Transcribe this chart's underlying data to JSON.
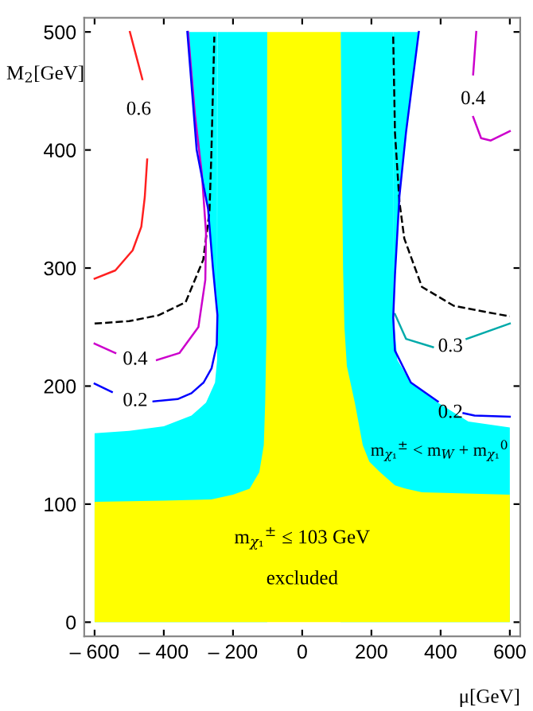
{
  "chart_data": {
    "type": "line",
    "xlabel": "μ[GeV]",
    "ylabel": "M$_{2}$[GeV]",
    "xlim": [
      -630,
      630
    ],
    "ylim": [
      -12,
      512
    ],
    "xticks": [
      {
        "value": -600,
        "label": "– 600"
      },
      {
        "value": -400,
        "label": "– 400"
      },
      {
        "value": -200,
        "label": "– 200"
      },
      0,
      200,
      400,
      600
    ],
    "yticks": [
      0,
      100,
      200,
      300,
      400,
      500
    ],
    "series": [
      {
        "type": "area",
        "color": "#00ffff",
        "x": [
          -600,
          -500,
          -400,
          -320,
          -278,
          -252,
          -246,
          -245,
          -101
        ],
        "values": [
          160,
          162,
          166,
          175,
          186,
          203,
          222,
          500,
          500
        ]
      },
      {
        "type": "area",
        "color": "#00ffff",
        "x": [
          -332,
          -310,
          -277,
          -258,
          -246,
          -246,
          -332
        ],
        "values": [
          500,
          415,
          361,
          300,
          258,
          500,
          500
        ]
      },
      {
        "type": "area",
        "color": "#00ffff",
        "x": [
          111,
          263,
          264,
          275,
          314,
          392,
          480,
          600
        ],
        "values": [
          500,
          500,
          258,
          222,
          203,
          186,
          170,
          165
        ]
      },
      {
        "type": "area",
        "color": "#00ffff",
        "x": [
          263,
          268,
          281,
          300,
          337,
          263,
          263
        ],
        "values": [
          258,
          294,
          361,
          415,
          500,
          500,
          258
        ]
      },
      {
        "type": "area",
        "color": "#ffff00",
        "x": [
          -600,
          -400,
          -263,
          -200,
          -152,
          -124,
          -111,
          -107,
          -103,
          -101,
          0,
          111,
          118,
          122,
          129,
          152,
          175,
          194,
          225,
          268,
          300,
          346,
          600
        ],
        "values": [
          102,
          103,
          104,
          108,
          113,
          127,
          150,
          186,
          250,
          500,
          500,
          500,
          300,
          250,
          217,
          186,
          150,
          136,
          127,
          116,
          113,
          110,
          108
        ]
      },
      {
        "color": "#ff2020",
        "line_style": "solid",
        "x": [
          -600,
          -540,
          -490,
          -465,
          -455,
          -448,
          -458,
          -462,
          -480,
          -498
        ],
        "values": [
          291,
          298,
          315,
          335,
          360,
          392,
          null,
          460,
          480,
          500
        ]
      },
      {
        "color": "#000000",
        "line_style": "dashed",
        "x": [
          -600,
          -500,
          -415,
          -337,
          -286,
          -268,
          -263,
          -254
        ],
        "values": [
          253,
          255,
          260,
          271,
          307,
          348,
          392,
          496
        ]
      },
      {
        "color": "#cc00cc",
        "line_style": "solid",
        "x": [
          -600,
          -540,
          -480,
          -420,
          -355,
          -300,
          -280,
          -278,
          -290,
          -310,
          -330
        ],
        "values": [
          236,
          228,
          null,
          222,
          228,
          250,
          290,
          330,
          380,
          430,
          500
        ]
      },
      {
        "color": "#0000ff",
        "line_style": "solid",
        "x": [
          -600,
          -550,
          -480,
          -430,
          -360,
          -320,
          -285,
          -262,
          -247,
          -245,
          -258,
          -272,
          -305,
          -332
        ],
        "values": [
          202,
          195,
          null,
          187,
          189,
          194,
          203,
          215,
          235,
          260,
          300,
          350,
          400,
          500
        ]
      },
      {
        "color": "#000000",
        "line_style": "dashed",
        "x": [
          263,
          268,
          281,
          295,
          346,
          438,
          600
        ],
        "values": [
          496,
          415,
          356,
          325,
          284,
          268,
          259
        ]
      },
      {
        "color": "#00aaaa",
        "line_style": "solid",
        "x": [
          268,
          300,
          378,
          429,
          475,
          600
        ],
        "values": [
          261,
          240,
          233,
          null,
          240,
          253
        ]
      },
      {
        "color": "#cc00cc",
        "line_style": "solid",
        "x": [
          503,
          494
        ],
        "values": [
          500,
          464
        ]
      },
      {
        "color": "#cc00cc",
        "line_style": "solid",
        "x": [
          494,
          517,
          545,
          600
        ],
        "values": [
          428,
          410,
          408,
          416
        ]
      },
      {
        "color": "#0000ff",
        "line_style": "solid",
        "x": [
          337,
          300,
          281,
          268,
          263,
          268,
          314,
          392
        ],
        "values": [
          500,
          415,
          361,
          294,
          258,
          230,
          203,
          187
        ]
      },
      {
        "color": "#0000ff",
        "line_style": "solid",
        "x": [
          466,
          498,
          600
        ],
        "values": [
          177,
          175,
          174
        ]
      }
    ],
    "annotations": [
      "0.6",
      "0.4",
      "0.2",
      "0.4",
      "0.3",
      "0.2",
      "m$_{χ₁}$$^{±}$ < m$_{W}$ + m$_{χ₁}$$^{0}$",
      "m$_{χ₁}$$^{±}$ ≤ 103 GeV",
      "excluded"
    ]
  }
}
